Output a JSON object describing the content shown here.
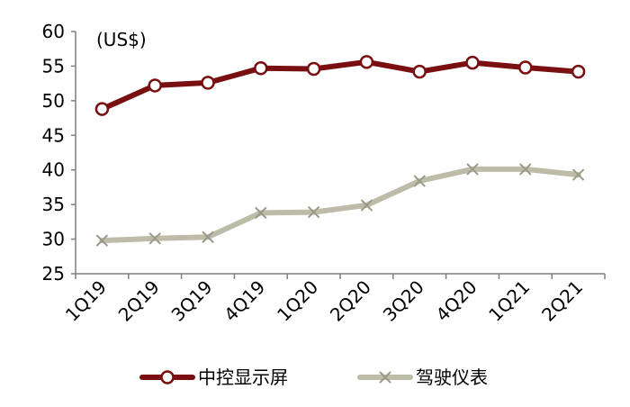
{
  "chart_data": {
    "type": "line",
    "categories": [
      "1Q19",
      "2Q19",
      "3Q19",
      "4Q19",
      "1Q20",
      "2Q20",
      "3Q20",
      "4Q20",
      "1Q21",
      "2Q21"
    ],
    "unit_label": "(US$)",
    "ylim": [
      25,
      60
    ],
    "yticks": [
      25,
      30,
      35,
      40,
      45,
      50,
      55,
      60
    ],
    "legend_position": "bottom",
    "grid": false,
    "series": [
      {
        "name": "中控显示屏",
        "color": "#7a0f12",
        "marker": "open-circle",
        "values": [
          48.8,
          52.2,
          52.6,
          54.7,
          54.6,
          55.6,
          54.2,
          55.5,
          54.8,
          54.2
        ]
      },
      {
        "name": "驾驶仪表",
        "color": "#bcbca8",
        "marker": "x",
        "values": [
          29.8,
          30.1,
          30.3,
          33.8,
          33.9,
          34.9,
          38.4,
          40.1,
          40.1,
          39.3
        ]
      }
    ]
  }
}
